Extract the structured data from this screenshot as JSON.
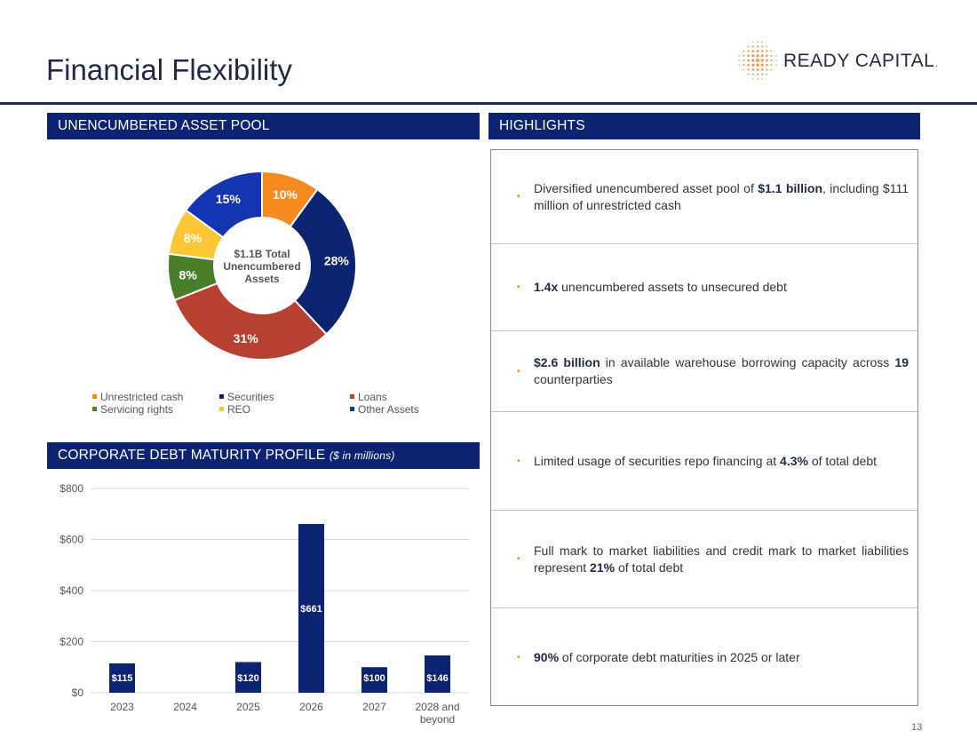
{
  "page": {
    "title": "Financial Flexibility",
    "page_number": "13",
    "logo_text": "READY CAPITAL",
    "logo_mark": "."
  },
  "sections": {
    "pool_header": "UNENCUMBERED ASSET POOL",
    "highlights_header": "HIGHLIGHTS",
    "debt_header": "CORPORATE DEBT MATURITY PROFILE",
    "debt_header_sub": "($ in millions)"
  },
  "colors": {
    "navy": "#0c2372",
    "orange": "#f58a1f",
    "red": "#b84030",
    "green": "#4a7d2a",
    "yellow": "#fcc634",
    "blue": "#1535b0",
    "logo_gold": "#e8a15a"
  },
  "highlights": [
    [
      {
        "t": "Diversified unencumbered asset pool of "
      },
      {
        "t": "$1.1 billion",
        "b": true
      },
      {
        "t": ", including $111 million of unrestricted cash"
      }
    ],
    [
      {
        "t": "1.4x",
        "b": true
      },
      {
        "t": " unencumbered assets to unsecured debt"
      }
    ],
    [
      {
        "t": "$2.6 billion",
        "b": true
      },
      {
        "t": " in available warehouse borrowing capacity across "
      },
      {
        "t": "19",
        "b": true
      },
      {
        "t": " counterparties"
      }
    ],
    [
      {
        "t": "Limited usage of securities repo financing at "
      },
      {
        "t": "4.3%",
        "b": true
      },
      {
        "t": " of total debt"
      }
    ],
    [
      {
        "t": "Full mark to market liabilities and credit mark to market liabilities represent "
      },
      {
        "t": "21%",
        "b": true
      },
      {
        "t": " of total debt"
      }
    ],
    [
      {
        "t": "90%",
        "b": true
      },
      {
        "t": " of corporate debt maturities in 2025 or later"
      }
    ]
  ],
  "chart_data": [
    {
      "type": "pie",
      "variant": "donut",
      "center_label": "$1.1B Total Unencumbered Assets",
      "center_lines": [
        "$1.1B Total",
        "Unencumbered",
        "Assets"
      ],
      "slices": [
        {
          "name": "Unrestricted cash",
          "value": 10,
          "label": "10%",
          "color": "#f58a1f"
        },
        {
          "name": "Securities",
          "value": 28,
          "label": "28%",
          "color": "#0c2372"
        },
        {
          "name": "Loans",
          "value": 31,
          "label": "31%",
          "color": "#b84030"
        },
        {
          "name": "Servicing rights",
          "value": 8,
          "label": "8%",
          "color": "#4a7d2a"
        },
        {
          "name": "REO",
          "value": 8,
          "label": "8%",
          "color": "#fcc634"
        },
        {
          "name": "Other Assets",
          "value": 15,
          "label": "15%",
          "color": "#1535b0"
        }
      ],
      "legend_order": [
        "Unrestricted cash",
        "Securities",
        "Loans",
        "Servicing rights",
        "REO",
        "Other Assets"
      ],
      "legend_placement": "bottom"
    },
    {
      "type": "bar",
      "title": "CORPORATE DEBT MATURITY PROFILE ($ in millions)",
      "categories": [
        "2023",
        "2024",
        "2025",
        "2026",
        "2027",
        "2028 and beyond"
      ],
      "category_lines": [
        [
          "2023"
        ],
        [
          "2024"
        ],
        [
          "2025"
        ],
        [
          "2026"
        ],
        [
          "2027"
        ],
        [
          "2028 and",
          "beyond"
        ]
      ],
      "values": [
        115,
        0,
        120,
        661,
        100,
        146
      ],
      "data_labels": [
        "$115",
        "",
        "$120",
        "$661",
        "$100",
        "$146"
      ],
      "yticks": [
        0,
        200,
        400,
        600,
        800
      ],
      "ytick_labels": [
        "$0",
        "$200",
        "$400",
        "$600",
        "$800"
      ],
      "ylim": [
        0,
        800
      ],
      "xlabel": "",
      "ylabel": "",
      "grid": true,
      "bar_color": "#0c2372"
    }
  ]
}
